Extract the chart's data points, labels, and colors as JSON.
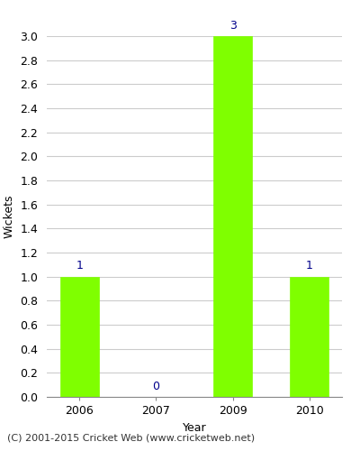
{
  "title": "",
  "categories": [
    "2006",
    "2007",
    "2009",
    "2010"
  ],
  "values": [
    1,
    0,
    3,
    1
  ],
  "bar_color": "#7FFF00",
  "bar_edge_color": "#7FFF00",
  "xlabel": "Year",
  "ylabel": "Wickets",
  "ylim": [
    0.0,
    3.0
  ],
  "yticks": [
    0.0,
    0.2,
    0.4,
    0.6,
    0.8,
    1.0,
    1.2,
    1.4,
    1.6,
    1.8,
    2.0,
    2.2,
    2.4,
    2.6,
    2.8,
    3.0
  ],
  "label_color": "#00008B",
  "label_fontsize": 9,
  "axis_label_fontsize": 9,
  "tick_fontsize": 9,
  "grid_color": "#cccccc",
  "background_color": "#ffffff",
  "footer_text": "(C) 2001-2015 Cricket Web (www.cricketweb.net)",
  "footer_fontsize": 8
}
